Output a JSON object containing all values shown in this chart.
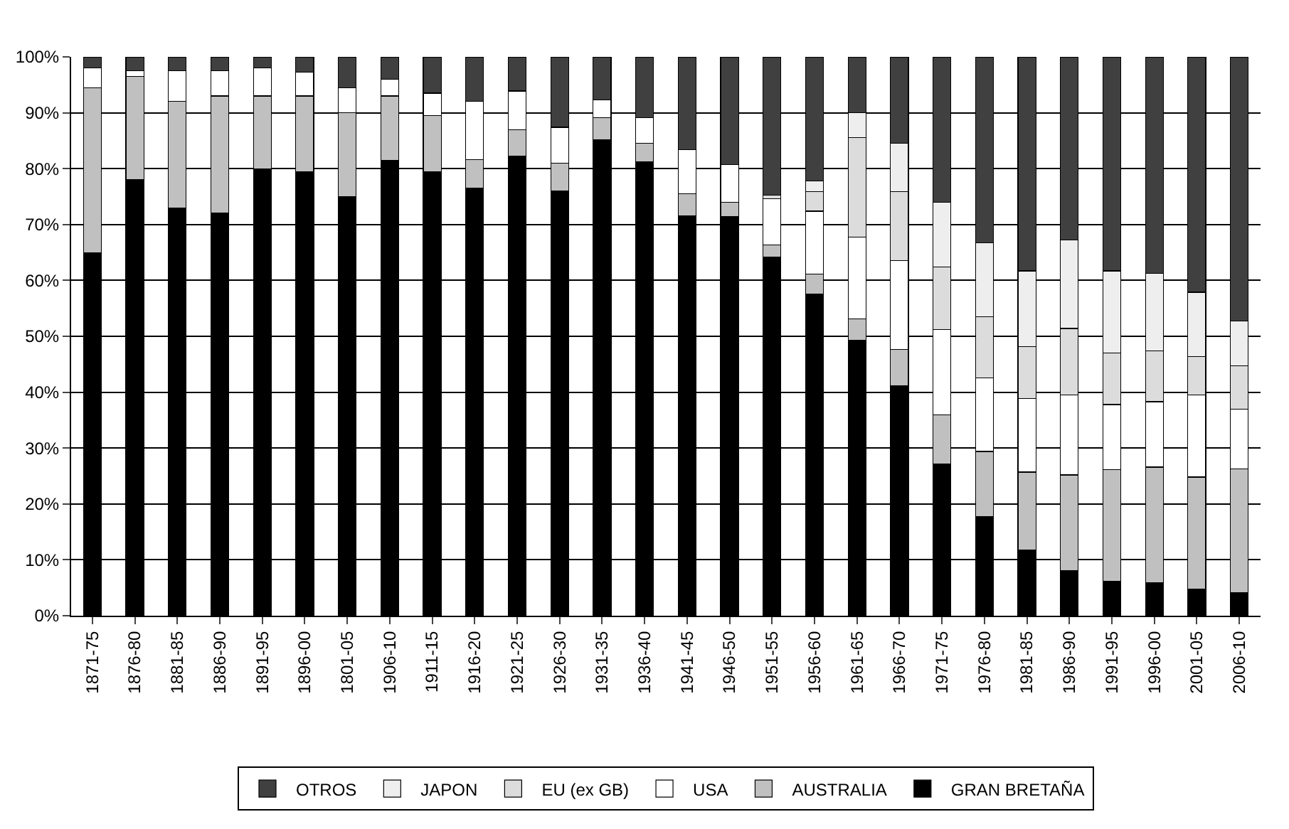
{
  "chart_data": {
    "type": "bar",
    "stacked": true,
    "categories": [
      "1871-75",
      "1876-80",
      "1881-85",
      "1886-90",
      "1891-95",
      "1896-00",
      "1801-05",
      "1906-10",
      "1911-15",
      "1916-20",
      "1921-25",
      "1926-30",
      "1931-35",
      "1936-40",
      "1941-45",
      "1946-50",
      "1951-55",
      "1956-60",
      "1961-65",
      "1966-70",
      "1971-75",
      "1976-80",
      "1981-85",
      "1986-90",
      "1991-95",
      "1996-00",
      "2001-05",
      "2006-10"
    ],
    "series": [
      {
        "name": "GRAN BRETAÑA",
        "color": "#000000",
        "values": [
          65,
          78,
          73,
          72,
          80,
          79.5,
          75,
          81.5,
          79.5,
          76.5,
          82.2,
          76,
          85.2,
          81.2,
          71.5,
          71.4,
          64.2,
          57.5,
          49.3,
          41.2,
          27.1,
          17.7,
          11.8,
          8.1,
          6.2,
          5.9,
          4.7,
          4.1
        ]
      },
      {
        "name": "AUSTRALIA",
        "color": "#c0c0c0",
        "values": [
          29.5,
          18.5,
          19,
          21,
          13,
          13.5,
          15,
          11.5,
          10,
          5.1,
          4.8,
          5,
          3.9,
          3.3,
          4,
          2.6,
          2.1,
          3.6,
          3.8,
          6.4,
          8.8,
          11.7,
          13.9,
          17.1,
          19.9,
          20.7,
          20.1,
          22.2
        ]
      },
      {
        "name": "USA",
        "color": "#ffffff",
        "values": [
          3.5,
          1,
          5.5,
          4.5,
          5,
          4.3,
          4.5,
          3,
          4,
          10.4,
          6.9,
          6.4,
          3.2,
          4.6,
          7.9,
          6.7,
          8.3,
          11.3,
          14.7,
          16,
          15.3,
          13.2,
          13.2,
          14.3,
          11.7,
          11.7,
          14.7,
          10.7
        ]
      },
      {
        "name": "EU (ex GB)",
        "color": "#dcdcdc",
        "values": [
          null,
          null,
          null,
          null,
          null,
          null,
          null,
          null,
          null,
          null,
          null,
          null,
          null,
          null,
          null,
          null,
          0.7,
          3.5,
          17.8,
          12.3,
          11.2,
          10.9,
          9.3,
          11.9,
          9.2,
          9.1,
          6.9,
          7.7
        ]
      },
      {
        "name": "JAPON",
        "color": "#eeeeee",
        "values": [
          null,
          null,
          null,
          null,
          null,
          null,
          null,
          null,
          null,
          null,
          null,
          null,
          null,
          null,
          null,
          null,
          null,
          1.9,
          4.4,
          8.6,
          11.6,
          13.2,
          13.5,
          15.8,
          14.7,
          13.9,
          11.5,
          8
        ]
      },
      {
        "name": "OTROS",
        "color": "#404040",
        "values": [
          2,
          2.5,
          2.5,
          2.5,
          2,
          2.7,
          5.5,
          4,
          6.5,
          8,
          6.1,
          12.6,
          7.7,
          10.9,
          16.6,
          19.3,
          24.7,
          22.2,
          10,
          15.5,
          26,
          33.3,
          38.3,
          32.8,
          38.3,
          38.7,
          42.1,
          47.3
        ]
      }
    ],
    "ylim": [
      0,
      100
    ],
    "yticks": [
      {
        "value": 0,
        "label": "0%"
      },
      {
        "value": 10,
        "label": "10%"
      },
      {
        "value": 20,
        "label": "20%"
      },
      {
        "value": 30,
        "label": "30%"
      },
      {
        "value": 40,
        "label": "40%"
      },
      {
        "value": 50,
        "label": "50%"
      },
      {
        "value": 60,
        "label": "60%"
      },
      {
        "value": 70,
        "label": "70%"
      },
      {
        "value": 80,
        "label": "80%"
      },
      {
        "value": 90,
        "label": "90%"
      },
      {
        "value": 100,
        "label": "100%"
      }
    ],
    "grid": "y",
    "legend": "bottom"
  }
}
